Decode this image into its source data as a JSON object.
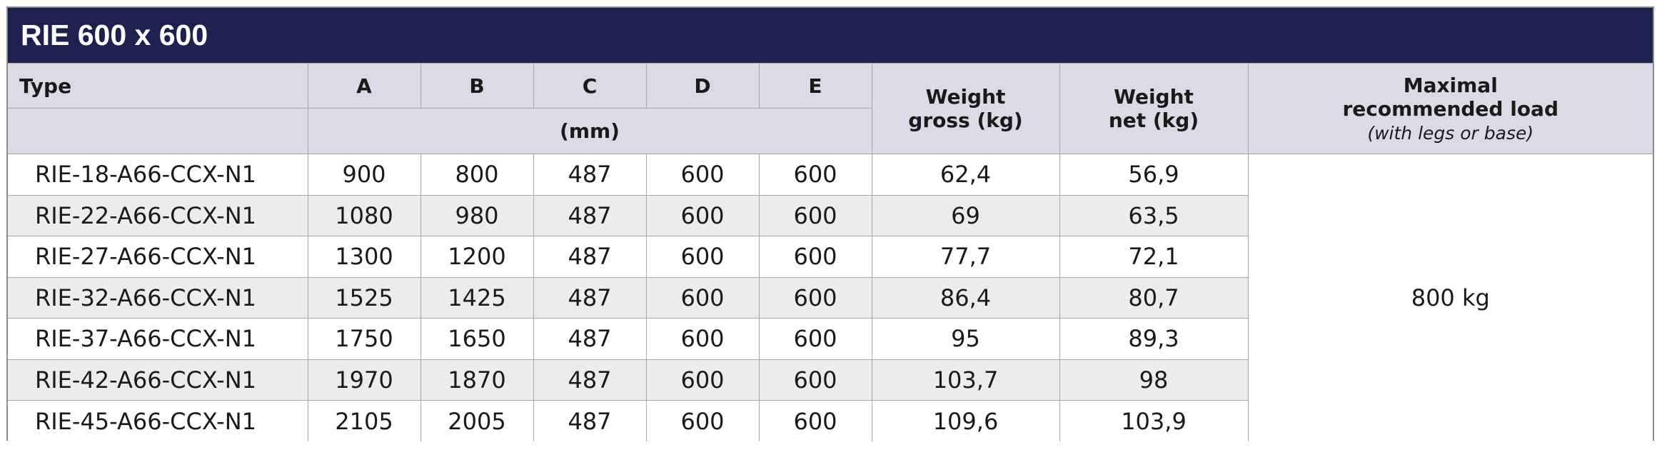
{
  "title": "RIE 600 x 600",
  "header": {
    "type": "Type",
    "cols": [
      "A",
      "B",
      "C",
      "D",
      "E"
    ],
    "unit": "(mm)",
    "weight_gross_line1": "Weight",
    "weight_gross_line2": "gross (kg)",
    "weight_net_line1": "Weight",
    "weight_net_line2": "net (kg)",
    "max_load_line1": "Maximal",
    "max_load_line2": "recommended load",
    "max_load_line3": "(with legs or base)"
  },
  "rows": [
    {
      "type": "RIE-18-A66-CCX-N1",
      "a": "900",
      "b": "800",
      "c": "487",
      "d": "600",
      "e": "600",
      "gross": "62,4",
      "net": "56,9"
    },
    {
      "type": "RIE-22-A66-CCX-N1",
      "a": "1080",
      "b": "980",
      "c": "487",
      "d": "600",
      "e": "600",
      "gross": "69",
      "net": "63,5"
    },
    {
      "type": "RIE-27-A66-CCX-N1",
      "a": "1300",
      "b": "1200",
      "c": "487",
      "d": "600",
      "e": "600",
      "gross": "77,7",
      "net": "72,1"
    },
    {
      "type": "RIE-32-A66-CCX-N1",
      "a": "1525",
      "b": "1425",
      "c": "487",
      "d": "600",
      "e": "600",
      "gross": "86,4",
      "net": "80,7"
    },
    {
      "type": "RIE-37-A66-CCX-N1",
      "a": "1750",
      "b": "1650",
      "c": "487",
      "d": "600",
      "e": "600",
      "gross": "95",
      "net": "89,3"
    },
    {
      "type": "RIE-42-A66-CCX-N1",
      "a": "1970",
      "b": "1870",
      "c": "487",
      "d": "600",
      "e": "600",
      "gross": "103,7",
      "net": "98"
    },
    {
      "type": "RIE-45-A66-CCX-N1",
      "a": "2105",
      "b": "2005",
      "c": "487",
      "d": "600",
      "e": "600",
      "gross": "109,6",
      "net": "103,9"
    }
  ],
  "max_load": "800 kg",
  "colors": {
    "title_bg": "#1c2150",
    "header_bg": "#dcdae6",
    "alt_row_bg": "#ecedeb",
    "border": "#a7a7a7"
  }
}
